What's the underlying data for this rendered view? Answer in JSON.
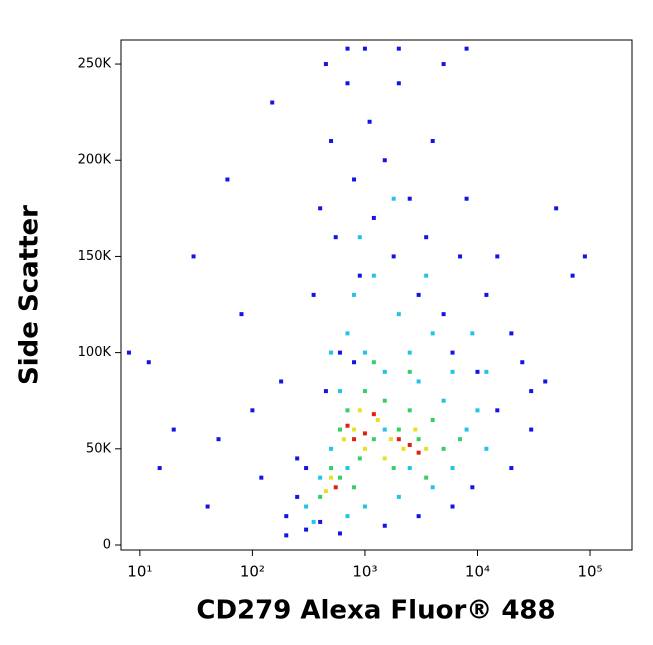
{
  "chart_data": {
    "type": "scatter",
    "xlabel": "CD279 Alexa Fluor® 488",
    "ylabel": "Side Scatter",
    "xscale": "log",
    "xlim": [
      6.8,
      236000
    ],
    "xticks": [
      {
        "value": 10,
        "label": "10¹"
      },
      {
        "value": 100,
        "label": "10²"
      },
      {
        "value": 1000,
        "label": "10³"
      },
      {
        "value": 10000,
        "label": "10⁴"
      },
      {
        "value": 100000,
        "label": "10⁵"
      }
    ],
    "ylim": [
      -2600,
      262500
    ],
    "yticks": [
      0,
      {
        "value": 50000,
        "label": "50K"
      },
      {
        "value": 100000,
        "label": "100K"
      },
      {
        "value": 150000,
        "label": "150K"
      },
      {
        "value": 200000,
        "label": "200K"
      },
      {
        "value": 250000,
        "label": "250K"
      }
    ],
    "series": [
      {
        "color": "#1414e6",
        "x": [
          8,
          12,
          15,
          20,
          30,
          40,
          50,
          60,
          80,
          100,
          120,
          150,
          180,
          200,
          250,
          300,
          350,
          400,
          450,
          500,
          550,
          600,
          700,
          800,
          900,
          1000,
          1100,
          1200,
          1500,
          1800,
          2000,
          2500,
          3000,
          3500,
          4000,
          5000,
          6000,
          7000,
          8000,
          10000,
          12000,
          15000,
          20000,
          25000,
          30000,
          40000,
          50000,
          70000,
          90000,
          250,
          300,
          200,
          400,
          600,
          1500,
          3000,
          6000,
          9000,
          20000,
          30000,
          15000,
          800,
          450,
          5000,
          700,
          2000,
          8000
        ],
        "y": [
          100000,
          95000,
          40000,
          60000,
          150000,
          20000,
          55000,
          190000,
          120000,
          70000,
          35000,
          230000,
          85000,
          15000,
          45000,
          8000,
          130000,
          175000,
          250000,
          210000,
          160000,
          100000,
          240000,
          190000,
          140000,
          258000,
          220000,
          170000,
          200000,
          150000,
          240000,
          180000,
          130000,
          160000,
          210000,
          120000,
          100000,
          150000,
          180000,
          90000,
          130000,
          70000,
          110000,
          95000,
          60000,
          85000,
          175000,
          140000,
          150000,
          25000,
          40000,
          5000,
          12000,
          6000,
          10000,
          15000,
          20000,
          30000,
          40000,
          80000,
          150000,
          95000,
          80000,
          250000,
          258000,
          258000,
          258000
        ]
      },
      {
        "color": "#20c4e4",
        "x": [
          300,
          400,
          500,
          600,
          700,
          800,
          1000,
          1200,
          1500,
          2000,
          2500,
          3000,
          4000,
          5000,
          6000,
          8000,
          10000,
          12000,
          6000,
          4000,
          2000,
          1000,
          700,
          350,
          900,
          1800,
          3500,
          9000,
          12000,
          500,
          1500,
          2500,
          700
        ],
        "y": [
          20000,
          35000,
          50000,
          80000,
          110000,
          130000,
          100000,
          140000,
          90000,
          120000,
          100000,
          85000,
          110000,
          75000,
          90000,
          60000,
          70000,
          50000,
          40000,
          30000,
          25000,
          20000,
          15000,
          12000,
          160000,
          180000,
          140000,
          110000,
          90000,
          100000,
          60000,
          40000,
          40000
        ]
      },
      {
        "color": "#34d064",
        "x": [
          400,
          500,
          600,
          700,
          900,
          1000,
          1200,
          1500,
          2000,
          2500,
          3000,
          4000,
          5000,
          7000,
          3500,
          1800,
          800,
          1200,
          2500,
          600
        ],
        "y": [
          25000,
          40000,
          60000,
          70000,
          45000,
          80000,
          55000,
          75000,
          60000,
          70000,
          55000,
          65000,
          50000,
          55000,
          35000,
          40000,
          30000,
          95000,
          90000,
          35000
        ]
      },
      {
        "color": "#e8e020",
        "x": [
          500,
          650,
          800,
          1000,
          1300,
          1700,
          2200,
          2800,
          3500,
          900,
          1500,
          450
        ],
        "y": [
          35000,
          55000,
          60000,
          50000,
          65000,
          55000,
          50000,
          60000,
          50000,
          70000,
          45000,
          28000
        ]
      },
      {
        "color": "#e02010",
        "x": [
          700,
          800,
          1000,
          2000,
          2500,
          3000,
          550,
          1200
        ],
        "y": [
          62000,
          55000,
          58000,
          55000,
          52000,
          48000,
          30000,
          68000
        ]
      }
    ]
  }
}
